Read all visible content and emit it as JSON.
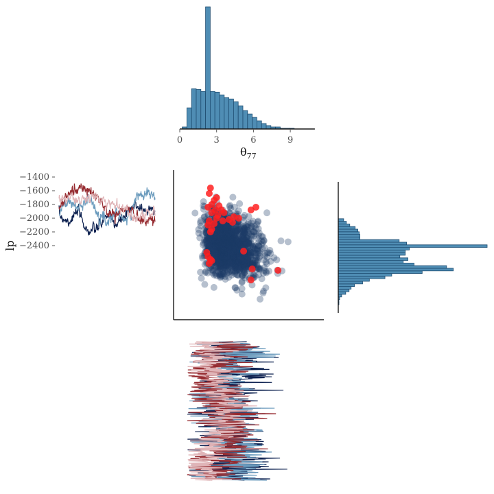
{
  "colors": {
    "hist_fill": "#4f8db4",
    "hist_stroke": "#1f4e72",
    "scatter_point": "#1d3b68",
    "divergent_point": "#ff2020",
    "chain_colors": [
      "#0d2150",
      "#6b9bbd",
      "#962b30",
      "#e0b4b7"
    ]
  },
  "chart_data": [
    {
      "type": "bar",
      "subtype": "histogram",
      "xlabel_main": "θ",
      "xlabel_sub": "77",
      "xticks": [
        0,
        3,
        6,
        9
      ],
      "xtick_labels": [
        "0",
        "3",
        "6",
        "9"
      ],
      "xlim": [
        0,
        11.0
      ],
      "bin_width": 0.38,
      "bin_start": 0.2,
      "values": [
        3,
        31,
        59,
        58,
        55,
        179,
        55,
        54,
        50,
        46,
        44,
        40,
        34,
        27,
        22,
        17,
        12,
        8,
        5,
        3,
        3,
        1,
        1,
        1
      ]
    },
    {
      "type": "scatter",
      "xlabel": "θ77",
      "ylabel": "lp",
      "xlim": [
        0,
        11.0
      ],
      "ylim": [
        -2400,
        -1350
      ],
      "n_points": 1400,
      "divergent": [
        [
          2.5,
          -1480
        ],
        [
          2.4,
          -1520
        ],
        [
          3.0,
          -1550
        ],
        [
          2.8,
          -1570
        ],
        [
          2.6,
          -1600
        ],
        [
          3.2,
          -1610
        ],
        [
          2.3,
          -1620
        ],
        [
          2.9,
          -1640
        ],
        [
          3.4,
          -1640
        ],
        [
          2.6,
          -1660
        ],
        [
          3.1,
          -1680
        ],
        [
          3.6,
          -1660
        ],
        [
          4.4,
          -1690
        ],
        [
          4.8,
          -1700
        ],
        [
          4.0,
          -1710
        ],
        [
          3.0,
          -1700
        ],
        [
          2.4,
          -1720
        ],
        [
          2.8,
          -1740
        ],
        [
          3.5,
          -1720
        ],
        [
          4.3,
          -1730
        ],
        [
          5.8,
          -1640
        ],
        [
          6.2,
          -1620
        ],
        [
          2.3,
          -1750
        ],
        [
          2.6,
          -1780
        ],
        [
          2.5,
          -1800
        ],
        [
          2.2,
          -1950
        ],
        [
          2.3,
          -1980
        ],
        [
          2.5,
          -2000
        ],
        [
          2.4,
          -2030
        ],
        [
          5.2,
          -1940
        ],
        [
          5.9,
          -2070
        ],
        [
          5.8,
          -2150
        ],
        [
          8.0,
          -2080
        ],
        [
          2.6,
          -2010
        ]
      ]
    },
    {
      "type": "line",
      "subtype": "trace",
      "ylabel": "lp",
      "yticks": [
        -2400,
        -2200,
        -2000,
        -1800,
        -1600,
        -1400
      ],
      "ytick_labels": [
        "−2400",
        "−2200",
        "−2000",
        "−1800",
        "−1600",
        "−1400"
      ],
      "ylim": [
        -2420,
        -1380
      ],
      "n_iterations": 300,
      "chains": [
        {
          "color": "#0d2150",
          "knots": [
            [
              0,
              -1950
            ],
            [
              30,
              -2050
            ],
            [
              60,
              -1900
            ],
            [
              90,
              -2200
            ],
            [
              120,
              -2150
            ],
            [
              150,
              -1950
            ],
            [
              180,
              -2100
            ],
            [
              210,
              -1950
            ],
            [
              240,
              -1800
            ],
            [
              270,
              -1900
            ],
            [
              300,
              -1850
            ]
          ]
        },
        {
          "color": "#6b9bbd",
          "knots": [
            [
              0,
              -1900
            ],
            [
              30,
              -1750
            ],
            [
              60,
              -1850
            ],
            [
              90,
              -1700
            ],
            [
              120,
              -1900
            ],
            [
              150,
              -2050
            ],
            [
              180,
              -1900
            ],
            [
              210,
              -2050
            ],
            [
              240,
              -1700
            ],
            [
              270,
              -1600
            ],
            [
              300,
              -1700
            ]
          ]
        },
        {
          "color": "#962b30",
          "knots": [
            [
              0,
              -1850
            ],
            [
              30,
              -1650
            ],
            [
              60,
              -1550
            ],
            [
              90,
              -1600
            ],
            [
              120,
              -1700
            ],
            [
              150,
              -1900
            ],
            [
              180,
              -1950
            ],
            [
              210,
              -1850
            ],
            [
              240,
              -1950
            ],
            [
              270,
              -2050
            ],
            [
              300,
              -2000
            ]
          ]
        },
        {
          "color": "#e0b4b7",
          "knots": [
            [
              0,
              -1720
            ],
            [
              30,
              -1700
            ],
            [
              60,
              -1750
            ],
            [
              90,
              -1720
            ],
            [
              120,
              -1700
            ],
            [
              150,
              -1780
            ],
            [
              180,
              -1800
            ],
            [
              210,
              -1880
            ],
            [
              240,
              -2000
            ],
            [
              270,
              -1950
            ],
            [
              300,
              -1900
            ]
          ]
        }
      ]
    },
    {
      "type": "bar",
      "subtype": "histogram-horizontal",
      "ylim": [
        -2420,
        -1380
      ],
      "bin_width": 20,
      "bin_start": -2380,
      "values": [
        1,
        1,
        2,
        5,
        11,
        16,
        19,
        24,
        36,
        46,
        69,
        79,
        124,
        170,
        160,
        112,
        96,
        103,
        91,
        99,
        99,
        105,
        220,
        101,
        90,
        32,
        32,
        31,
        29,
        25,
        17,
        12,
        8
      ]
    },
    {
      "type": "line",
      "subtype": "trace",
      "orientation": "vertical",
      "xlim": [
        0,
        11.0
      ],
      "n_iterations": 300,
      "chains": [
        {
          "color": "#0d2150",
          "mean": 4.2,
          "amp": 2.5
        },
        {
          "color": "#6b9bbd",
          "mean": 3.9,
          "amp": 2.6
        },
        {
          "color": "#962b30",
          "mean": 3.4,
          "amp": 2.3
        },
        {
          "color": "#e0b4b7",
          "mean": 3.0,
          "amp": 1.8
        }
      ]
    }
  ]
}
